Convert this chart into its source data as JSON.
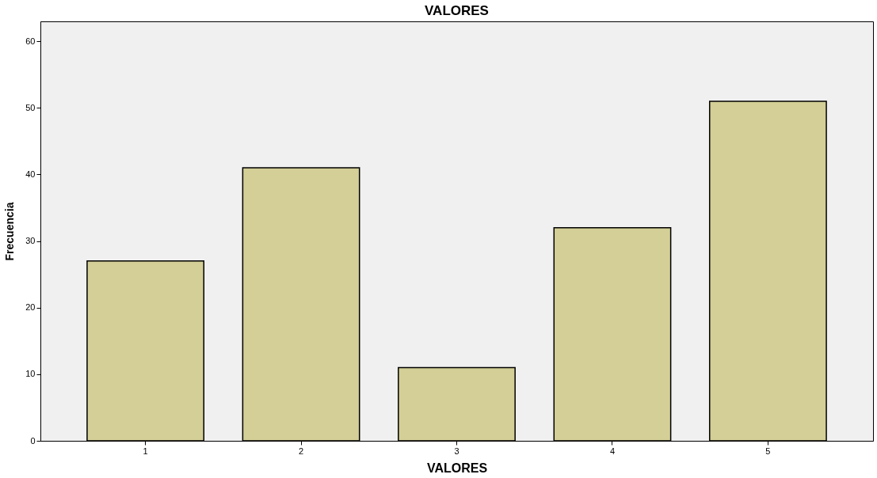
{
  "chart_data": {
    "type": "bar",
    "title": "VALORES",
    "xlabel": "VALORES",
    "ylabel": "Frecuencia",
    "categories": [
      "1",
      "2",
      "3",
      "4",
      "5"
    ],
    "values": [
      27,
      41,
      11,
      32,
      51
    ],
    "color": "#d3cf96",
    "ylim": [
      0,
      63
    ],
    "yticks": [
      0,
      10,
      20,
      30,
      40,
      50,
      60
    ],
    "grid": false,
    "legend": false
  }
}
